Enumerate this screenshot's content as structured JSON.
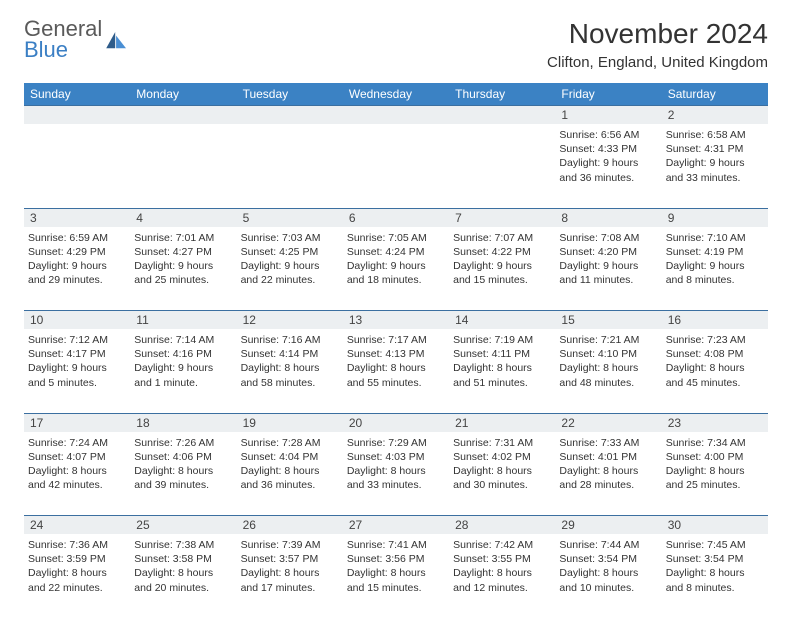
{
  "logo": {
    "text1": "General",
    "text2": "Blue"
  },
  "title": "November 2024",
  "location": "Clifton, England, United Kingdom",
  "header_bg": "#3b82c4",
  "daynum_bg": "#eceff1",
  "border_color": "#3b6fa0",
  "dayNames": [
    "Sunday",
    "Monday",
    "Tuesday",
    "Wednesday",
    "Thursday",
    "Friday",
    "Saturday"
  ],
  "weeks": [
    [
      null,
      null,
      null,
      null,
      null,
      {
        "n": "1",
        "sr": "6:56 AM",
        "ss": "4:33 PM",
        "dl": "9 hours and 36 minutes."
      },
      {
        "n": "2",
        "sr": "6:58 AM",
        "ss": "4:31 PM",
        "dl": "9 hours and 33 minutes."
      }
    ],
    [
      {
        "n": "3",
        "sr": "6:59 AM",
        "ss": "4:29 PM",
        "dl": "9 hours and 29 minutes."
      },
      {
        "n": "4",
        "sr": "7:01 AM",
        "ss": "4:27 PM",
        "dl": "9 hours and 25 minutes."
      },
      {
        "n": "5",
        "sr": "7:03 AM",
        "ss": "4:25 PM",
        "dl": "9 hours and 22 minutes."
      },
      {
        "n": "6",
        "sr": "7:05 AM",
        "ss": "4:24 PM",
        "dl": "9 hours and 18 minutes."
      },
      {
        "n": "7",
        "sr": "7:07 AM",
        "ss": "4:22 PM",
        "dl": "9 hours and 15 minutes."
      },
      {
        "n": "8",
        "sr": "7:08 AM",
        "ss": "4:20 PM",
        "dl": "9 hours and 11 minutes."
      },
      {
        "n": "9",
        "sr": "7:10 AM",
        "ss": "4:19 PM",
        "dl": "9 hours and 8 minutes."
      }
    ],
    [
      {
        "n": "10",
        "sr": "7:12 AM",
        "ss": "4:17 PM",
        "dl": "9 hours and 5 minutes."
      },
      {
        "n": "11",
        "sr": "7:14 AM",
        "ss": "4:16 PM",
        "dl": "9 hours and 1 minute."
      },
      {
        "n": "12",
        "sr": "7:16 AM",
        "ss": "4:14 PM",
        "dl": "8 hours and 58 minutes."
      },
      {
        "n": "13",
        "sr": "7:17 AM",
        "ss": "4:13 PM",
        "dl": "8 hours and 55 minutes."
      },
      {
        "n": "14",
        "sr": "7:19 AM",
        "ss": "4:11 PM",
        "dl": "8 hours and 51 minutes."
      },
      {
        "n": "15",
        "sr": "7:21 AM",
        "ss": "4:10 PM",
        "dl": "8 hours and 48 minutes."
      },
      {
        "n": "16",
        "sr": "7:23 AM",
        "ss": "4:08 PM",
        "dl": "8 hours and 45 minutes."
      }
    ],
    [
      {
        "n": "17",
        "sr": "7:24 AM",
        "ss": "4:07 PM",
        "dl": "8 hours and 42 minutes."
      },
      {
        "n": "18",
        "sr": "7:26 AM",
        "ss": "4:06 PM",
        "dl": "8 hours and 39 minutes."
      },
      {
        "n": "19",
        "sr": "7:28 AM",
        "ss": "4:04 PM",
        "dl": "8 hours and 36 minutes."
      },
      {
        "n": "20",
        "sr": "7:29 AM",
        "ss": "4:03 PM",
        "dl": "8 hours and 33 minutes."
      },
      {
        "n": "21",
        "sr": "7:31 AM",
        "ss": "4:02 PM",
        "dl": "8 hours and 30 minutes."
      },
      {
        "n": "22",
        "sr": "7:33 AM",
        "ss": "4:01 PM",
        "dl": "8 hours and 28 minutes."
      },
      {
        "n": "23",
        "sr": "7:34 AM",
        "ss": "4:00 PM",
        "dl": "8 hours and 25 minutes."
      }
    ],
    [
      {
        "n": "24",
        "sr": "7:36 AM",
        "ss": "3:59 PM",
        "dl": "8 hours and 22 minutes."
      },
      {
        "n": "25",
        "sr": "7:38 AM",
        "ss": "3:58 PM",
        "dl": "8 hours and 20 minutes."
      },
      {
        "n": "26",
        "sr": "7:39 AM",
        "ss": "3:57 PM",
        "dl": "8 hours and 17 minutes."
      },
      {
        "n": "27",
        "sr": "7:41 AM",
        "ss": "3:56 PM",
        "dl": "8 hours and 15 minutes."
      },
      {
        "n": "28",
        "sr": "7:42 AM",
        "ss": "3:55 PM",
        "dl": "8 hours and 12 minutes."
      },
      {
        "n": "29",
        "sr": "7:44 AM",
        "ss": "3:54 PM",
        "dl": "8 hours and 10 minutes."
      },
      {
        "n": "30",
        "sr": "7:45 AM",
        "ss": "3:54 PM",
        "dl": "8 hours and 8 minutes."
      }
    ]
  ],
  "labels": {
    "sunrise": "Sunrise: ",
    "sunset": "Sunset: ",
    "daylight": "Daylight: "
  }
}
